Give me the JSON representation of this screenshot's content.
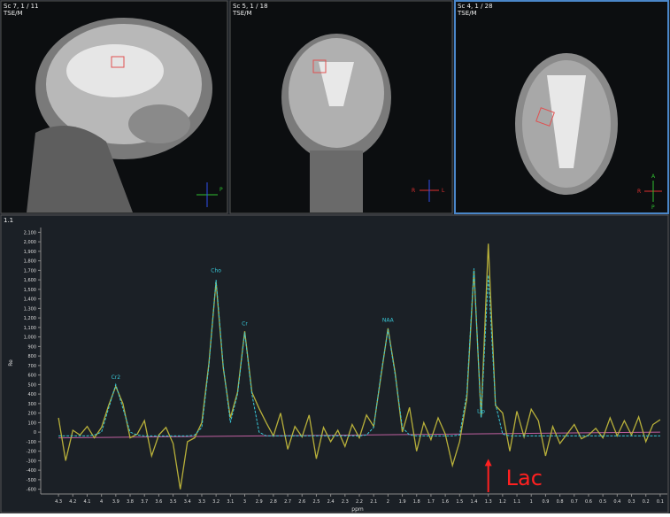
{
  "images": [
    {
      "title": "Sc 7, 1 / 11",
      "subtitle": "TSE/M",
      "orientation": [
        "P"
      ]
    },
    {
      "title": "Sc 5, 1 / 18",
      "subtitle": "TSE/M",
      "orientation": [
        "R",
        "L"
      ]
    },
    {
      "title": "Sc 4, 1 / 28",
      "subtitle": "TSE/M",
      "orientation": [
        "A",
        "R",
        "P"
      ]
    }
  ],
  "chart_data": {
    "type": "line",
    "title": "1.1",
    "xlabel": "ppm",
    "ylabel": "Re",
    "x": [
      4.3,
      4.25,
      4.2,
      4.15,
      4.1,
      4.05,
      4.0,
      3.95,
      3.9,
      3.85,
      3.8,
      3.75,
      3.7,
      3.65,
      3.6,
      3.55,
      3.5,
      3.45,
      3.4,
      3.35,
      3.3,
      3.25,
      3.2,
      3.15,
      3.1,
      3.05,
      3.0,
      2.95,
      2.9,
      2.85,
      2.8,
      2.75,
      2.7,
      2.65,
      2.6,
      2.55,
      2.5,
      2.45,
      2.4,
      2.35,
      2.3,
      2.25,
      2.2,
      2.15,
      2.1,
      2.05,
      2.0,
      1.95,
      1.9,
      1.85,
      1.8,
      1.75,
      1.7,
      1.65,
      1.6,
      1.55,
      1.5,
      1.45,
      1.4,
      1.35,
      1.3,
      1.25,
      1.2,
      1.15,
      1.1,
      1.05,
      1.0,
      0.95,
      0.9,
      0.85,
      0.8,
      0.75,
      0.7,
      0.65,
      0.6,
      0.55,
      0.5,
      0.45,
      0.4,
      0.35,
      0.3,
      0.25,
      0.2,
      0.15,
      0.1
    ],
    "series": [
      {
        "color": "#b8b03a",
        "values": [
          150,
          -300,
          20,
          -30,
          60,
          -60,
          50,
          280,
          480,
          300,
          -60,
          -20,
          120,
          -250,
          -30,
          50,
          -120,
          -600,
          -100,
          -60,
          100,
          720,
          1580,
          680,
          150,
          420,
          1060,
          420,
          250,
          100,
          -40,
          200,
          -180,
          60,
          -50,
          180,
          -280,
          50,
          -100,
          20,
          -150,
          80,
          -60,
          180,
          60,
          580,
          1090,
          620,
          0,
          260,
          -200,
          100,
          -80,
          150,
          -20,
          -350,
          -100,
          350,
          1700,
          160,
          1980,
          280,
          200,
          -200,
          220,
          -50,
          240,
          120,
          -250,
          60,
          -120,
          -20,
          80,
          -70,
          -30,
          40,
          -60,
          150,
          -40,
          120,
          -30,
          160,
          -100,
          80,
          130
        ]
      },
      {
        "color": "#38c8d8",
        "values": [
          -40,
          -40,
          -40,
          -40,
          -40,
          -30,
          0,
          250,
          500,
          250,
          0,
          -30,
          -40,
          -40,
          -40,
          -40,
          -40,
          -40,
          -40,
          -30,
          50,
          700,
          1600,
          700,
          100,
          400,
          1050,
          400,
          0,
          -40,
          -40,
          -40,
          -40,
          -40,
          -40,
          -40,
          -40,
          -40,
          -40,
          -40,
          -40,
          -40,
          -40,
          -30,
          50,
          600,
          1080,
          600,
          50,
          -30,
          -40,
          -40,
          -40,
          -40,
          -40,
          -40,
          -30,
          400,
          1720,
          150,
          1650,
          300,
          -20,
          -40,
          -40,
          -40,
          -40,
          -40,
          -40,
          -40,
          -40,
          -40,
          -40,
          -40,
          -40,
          -40,
          -40,
          -40,
          -40,
          -40,
          -40,
          -40,
          -40,
          -40,
          -40
        ]
      }
    ],
    "baseline": {
      "color": "#c060a0",
      "x": [
        4.3,
        0.1
      ],
      "values": [
        -60,
        0
      ]
    },
    "annotations": [
      {
        "text": "Cr2",
        "x": 3.9,
        "y": 560
      },
      {
        "text": "Cho",
        "x": 3.2,
        "y": 1680
      },
      {
        "text": "Cr",
        "x": 3.0,
        "y": 1120
      },
      {
        "text": "NAA",
        "x": 2.0,
        "y": 1160
      },
      {
        "text": "Lip",
        "x": 1.35,
        "y": 200
      }
    ],
    "marker": {
      "text": "Lac",
      "x": 1.3,
      "y": -300,
      "color": "#ff2020"
    },
    "xlim": [
      4.35,
      0.05
    ],
    "ylim": [
      -650,
      2150
    ],
    "xticks": [
      4.3,
      4.2,
      4.1,
      4,
      3.9,
      3.8,
      3.7,
      3.6,
      3.5,
      3.4,
      3.3,
      3.2,
      3.1,
      3,
      2.9,
      2.8,
      2.7,
      2.6,
      2.5,
      2.4,
      2.3,
      2.2,
      2.1,
      2,
      1.9,
      1.8,
      1.7,
      1.6,
      1.5,
      1.4,
      1.3,
      1.2,
      1.1,
      1,
      0.9,
      0.8,
      0.7,
      0.6,
      0.5,
      0.4,
      0.3,
      0.2,
      0.1
    ],
    "yticks": [
      {
        "value": 2100,
        "label": "2,100"
      },
      {
        "value": 2000,
        "label": "2,000"
      },
      {
        "value": 1900,
        "label": "1,900"
      },
      {
        "value": 1800,
        "label": "1,800"
      },
      {
        "value": 1700,
        "label": "1,700"
      },
      {
        "value": 1600,
        "label": "1,600"
      },
      {
        "value": 1500,
        "label": "1,500"
      },
      {
        "value": 1400,
        "label": "1,400"
      },
      {
        "value": 1300,
        "label": "1,300"
      },
      {
        "value": 1200,
        "label": "1,200"
      },
      {
        "value": 1100,
        "label": "1,100"
      },
      {
        "value": 1000,
        "label": "1,000"
      },
      900,
      800,
      700,
      600,
      500,
      400,
      300,
      200,
      100,
      0,
      -100,
      -200,
      -300,
      -400,
      -500,
      -600
    ]
  }
}
